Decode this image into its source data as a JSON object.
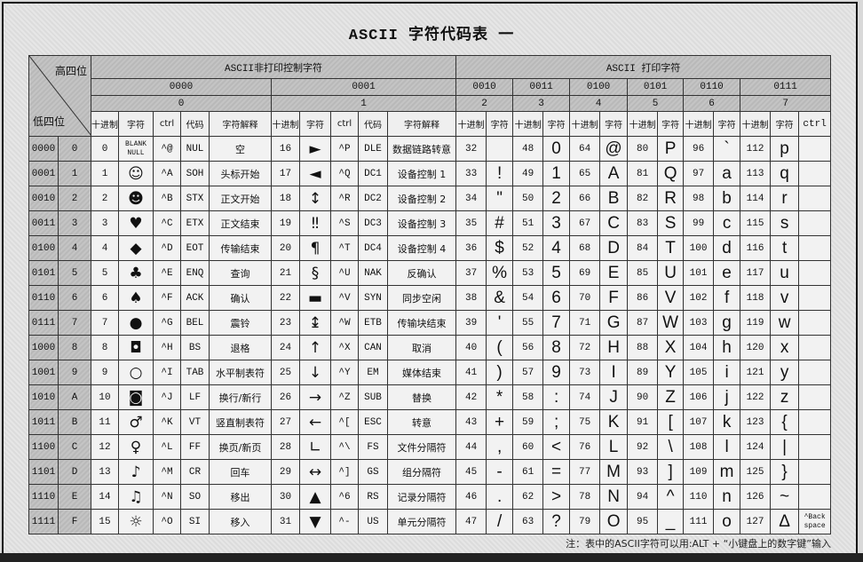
{
  "title": "ASCII 字符代码表 一",
  "corner": {
    "high": "高四位",
    "low": "低四位"
  },
  "groups": {
    "nonprint": "ASCII非打印控制字符",
    "print": "ASCII 打印字符"
  },
  "high_bins": [
    "0000",
    "0001",
    "0010",
    "0011",
    "0100",
    "0101",
    "0110",
    "0111"
  ],
  "high_hex": [
    "0",
    "1",
    "2",
    "3",
    "4",
    "5",
    "6",
    "7"
  ],
  "col_headers": {
    "dec": "十进制",
    "char": "字符",
    "ctrl": "ctrl",
    "code": "代码",
    "meaning": "字符解释"
  },
  "rows": [
    {
      "bin": "0000",
      "hex": "0",
      "c0": [
        "0",
        "BLANK NULL",
        "^@",
        "NUL",
        "空"
      ],
      "c1": [
        "16",
        "►",
        "^P",
        "DLE",
        "数据链路转意"
      ],
      "p": [
        [
          "32",
          " "
        ],
        [
          "48",
          "0"
        ],
        [
          "64",
          "@"
        ],
        [
          "80",
          "P"
        ],
        [
          "96",
          "`"
        ],
        [
          "112",
          "p"
        ]
      ],
      "ctrl7": ""
    },
    {
      "bin": "0001",
      "hex": "1",
      "c0": [
        "1",
        "☺",
        "^A",
        "SOH",
        "头标开始"
      ],
      "c1": [
        "17",
        "◄",
        "^Q",
        "DC1",
        "设备控制 1"
      ],
      "p": [
        [
          "33",
          "!"
        ],
        [
          "49",
          "1"
        ],
        [
          "65",
          "A"
        ],
        [
          "81",
          "Q"
        ],
        [
          "97",
          "a"
        ],
        [
          "113",
          "q"
        ]
      ],
      "ctrl7": ""
    },
    {
      "bin": "0010",
      "hex": "2",
      "c0": [
        "2",
        "☻",
        "^B",
        "STX",
        "正文开始"
      ],
      "c1": [
        "18",
        "↕",
        "^R",
        "DC2",
        "设备控制 2"
      ],
      "p": [
        [
          "34",
          "\""
        ],
        [
          "50",
          "2"
        ],
        [
          "66",
          "B"
        ],
        [
          "82",
          "R"
        ],
        [
          "98",
          "b"
        ],
        [
          "114",
          "r"
        ]
      ],
      "ctrl7": ""
    },
    {
      "bin": "0011",
      "hex": "3",
      "c0": [
        "3",
        "♥",
        "^C",
        "ETX",
        "正文结束"
      ],
      "c1": [
        "19",
        "‼",
        "^S",
        "DC3",
        "设备控制 3"
      ],
      "p": [
        [
          "35",
          "#"
        ],
        [
          "51",
          "3"
        ],
        [
          "67",
          "C"
        ],
        [
          "83",
          "S"
        ],
        [
          "99",
          "c"
        ],
        [
          "115",
          "s"
        ]
      ],
      "ctrl7": ""
    },
    {
      "bin": "0100",
      "hex": "4",
      "c0": [
        "4",
        "◆",
        "^D",
        "EOT",
        "传输结束"
      ],
      "c1": [
        "20",
        "¶",
        "^T",
        "DC4",
        "设备控制 4"
      ],
      "p": [
        [
          "36",
          "$"
        ],
        [
          "52",
          "4"
        ],
        [
          "68",
          "D"
        ],
        [
          "84",
          "T"
        ],
        [
          "100",
          "d"
        ],
        [
          "116",
          "t"
        ]
      ],
      "ctrl7": ""
    },
    {
      "bin": "0101",
      "hex": "5",
      "c0": [
        "5",
        "♣",
        "^E",
        "ENQ",
        "查询"
      ],
      "c1": [
        "21",
        "§",
        "^U",
        "NAK",
        "反确认"
      ],
      "p": [
        [
          "37",
          "%"
        ],
        [
          "53",
          "5"
        ],
        [
          "69",
          "E"
        ],
        [
          "85",
          "U"
        ],
        [
          "101",
          "e"
        ],
        [
          "117",
          "u"
        ]
      ],
      "ctrl7": ""
    },
    {
      "bin": "0110",
      "hex": "6",
      "c0": [
        "6",
        "♠",
        "^F",
        "ACK",
        "确认"
      ],
      "c1": [
        "22",
        "▬",
        "^V",
        "SYN",
        "同步空闲"
      ],
      "p": [
        [
          "38",
          "&"
        ],
        [
          "54",
          "6"
        ],
        [
          "70",
          "F"
        ],
        [
          "86",
          "V"
        ],
        [
          "102",
          "f"
        ],
        [
          "118",
          "v"
        ]
      ],
      "ctrl7": ""
    },
    {
      "bin": "0111",
      "hex": "7",
      "c0": [
        "7",
        "●",
        "^G",
        "BEL",
        "震铃"
      ],
      "c1": [
        "23",
        "↨",
        "^W",
        "ETB",
        "传输块结束"
      ],
      "p": [
        [
          "39",
          "'"
        ],
        [
          "55",
          "7"
        ],
        [
          "71",
          "G"
        ],
        [
          "87",
          "W"
        ],
        [
          "103",
          "g"
        ],
        [
          "119",
          "w"
        ]
      ],
      "ctrl7": ""
    },
    {
      "bin": "1000",
      "hex": "8",
      "c0": [
        "8",
        "◘",
        "^H",
        "BS",
        "退格"
      ],
      "c1": [
        "24",
        "↑",
        "^X",
        "CAN",
        "取消"
      ],
      "p": [
        [
          "40",
          "("
        ],
        [
          "56",
          "8"
        ],
        [
          "72",
          "H"
        ],
        [
          "88",
          "X"
        ],
        [
          "104",
          "h"
        ],
        [
          "120",
          "x"
        ]
      ],
      "ctrl7": ""
    },
    {
      "bin": "1001",
      "hex": "9",
      "c0": [
        "9",
        "○",
        "^I",
        "TAB",
        "水平制表符"
      ],
      "c1": [
        "25",
        "↓",
        "^Y",
        "EM",
        "媒体结束"
      ],
      "p": [
        [
          "41",
          ")"
        ],
        [
          "57",
          "9"
        ],
        [
          "73",
          "I"
        ],
        [
          "89",
          "Y"
        ],
        [
          "105",
          "i"
        ],
        [
          "121",
          "y"
        ]
      ],
      "ctrl7": ""
    },
    {
      "bin": "1010",
      "hex": "A",
      "c0": [
        "10",
        "◙",
        "^J",
        "LF",
        "换行/新行"
      ],
      "c1": [
        "26",
        "→",
        "^Z",
        "SUB",
        "替换"
      ],
      "p": [
        [
          "42",
          "*"
        ],
        [
          "58",
          ":"
        ],
        [
          "74",
          "J"
        ],
        [
          "90",
          "Z"
        ],
        [
          "106",
          "j"
        ],
        [
          "122",
          "z"
        ]
      ],
      "ctrl7": ""
    },
    {
      "bin": "1011",
      "hex": "B",
      "c0": [
        "11",
        "♂",
        "^K",
        "VT",
        "竖直制表符"
      ],
      "c1": [
        "27",
        "←",
        "^[",
        "ESC",
        "转意"
      ],
      "p": [
        [
          "43",
          "+"
        ],
        [
          "59",
          ";"
        ],
        [
          "75",
          "K"
        ],
        [
          "91",
          "["
        ],
        [
          "107",
          "k"
        ],
        [
          "123",
          "{"
        ]
      ],
      "ctrl7": ""
    },
    {
      "bin": "1100",
      "hex": "C",
      "c0": [
        "12",
        "♀",
        "^L",
        "FF",
        "换页/新页"
      ],
      "c1": [
        "28",
        "∟",
        "^\\",
        "FS",
        "文件分隔符"
      ],
      "p": [
        [
          "44",
          ","
        ],
        [
          "60",
          "<"
        ],
        [
          "76",
          "L"
        ],
        [
          "92",
          "\\"
        ],
        [
          "108",
          "l"
        ],
        [
          "124",
          "|"
        ]
      ],
      "ctrl7": ""
    },
    {
      "bin": "1101",
      "hex": "D",
      "c0": [
        "13",
        "♪",
        "^M",
        "CR",
        "回车"
      ],
      "c1": [
        "29",
        "↔",
        "^]",
        "GS",
        "组分隔符"
      ],
      "p": [
        [
          "45",
          "-"
        ],
        [
          "61",
          "="
        ],
        [
          "77",
          "M"
        ],
        [
          "93",
          "]"
        ],
        [
          "109",
          "m"
        ],
        [
          "125",
          "}"
        ]
      ],
      "ctrl7": ""
    },
    {
      "bin": "1110",
      "hex": "E",
      "c0": [
        "14",
        "♫",
        "^N",
        "SO",
        "移出"
      ],
      "c1": [
        "30",
        "▲",
        "^6",
        "RS",
        "记录分隔符"
      ],
      "p": [
        [
          "46",
          "."
        ],
        [
          "62",
          ">"
        ],
        [
          "78",
          "N"
        ],
        [
          "94",
          "^"
        ],
        [
          "110",
          "n"
        ],
        [
          "126",
          "~"
        ]
      ],
      "ctrl7": ""
    },
    {
      "bin": "1111",
      "hex": "F",
      "c0": [
        "15",
        "☼",
        "^O",
        "SI",
        "移入"
      ],
      "c1": [
        "31",
        "▼",
        "^-",
        "US",
        "单元分隔符"
      ],
      "p": [
        [
          "47",
          "/"
        ],
        [
          "63",
          "?"
        ],
        [
          "79",
          "O"
        ],
        [
          "95",
          "_"
        ],
        [
          "111",
          "o"
        ],
        [
          "127",
          "Δ"
        ]
      ],
      "ctrl7": "^Back space"
    }
  ],
  "note": "注：表中的ASCII字符可以用:ALT + “小键盘上的数字键”输入"
}
